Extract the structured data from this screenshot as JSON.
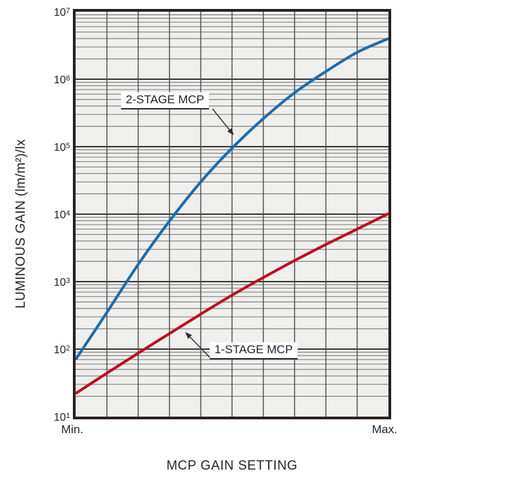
{
  "page": {
    "background": "#ffffff"
  },
  "chart_data": {
    "type": "line",
    "title": "",
    "xlabel": "MCP GAIN SETTING",
    "ylabel": "LUMINOUS GAIN (lm/m²)/lx",
    "x_axis": {
      "scale": "linear",
      "divisions": 10,
      "min_label": "Min.",
      "max_label": "Max."
    },
    "y_axis": {
      "scale": "log",
      "min": 10,
      "max": 10000000,
      "tick_exponents": [
        7,
        6,
        5,
        4,
        3,
        2,
        1
      ]
    },
    "grid": true,
    "plot_background": "#efefed",
    "grid_minor_color": "#858585",
    "grid_major_color": "#383838",
    "grid_vertical_color": "#4b4b4b",
    "border_color": "#2a2320",
    "annotation_color": "#2c2c34",
    "series": [
      {
        "name": "2-STAGE MCP",
        "color": "#1e6bab",
        "x_frac": [
          0,
          0.1,
          0.2,
          0.3,
          0.4,
          0.5,
          0.6,
          0.7,
          0.8,
          0.9,
          1.0
        ],
        "values": [
          70,
          350,
          1800,
          7900,
          30000,
          95000,
          260000,
          630000,
          1300000,
          2500000,
          4000000
        ]
      },
      {
        "name": "1-STAGE MCP",
        "color": "#c00c1e",
        "x_frac": [
          0,
          0.1,
          0.2,
          0.3,
          0.4,
          0.5,
          0.6,
          0.7,
          0.8,
          0.9,
          1.0
        ],
        "values": [
          22,
          44,
          87,
          170,
          330,
          630,
          1150,
          2050,
          3550,
          6000,
          10200
        ]
      }
    ]
  }
}
